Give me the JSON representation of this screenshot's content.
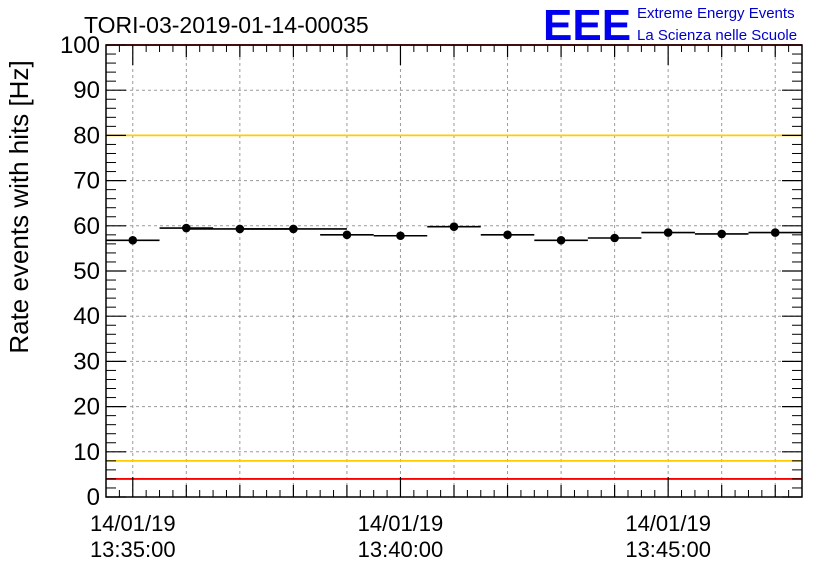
{
  "chart_data": {
    "type": "scatter",
    "title": "TORI-03-2019-01-14-00035",
    "xlabel": "",
    "ylabel": "Rate events with hits [Hz]",
    "ylim": [
      0,
      100
    ],
    "yticks": [
      "0",
      "10",
      "20",
      "30",
      "40",
      "50",
      "60",
      "70",
      "80",
      "90",
      "100"
    ],
    "xlim_minutes": [
      -0.5,
      12.5
    ],
    "x_unit": "minutes after 13:35:00",
    "xticks": [
      {
        "at": 0,
        "date": "14/01/19",
        "time": "13:35:00"
      },
      {
        "at": 5,
        "date": "14/01/19",
        "time": "13:40:00"
      },
      {
        "at": 10,
        "date": "14/01/19",
        "time": "13:45:00"
      }
    ],
    "grid": true,
    "series": [
      {
        "name": "rate",
        "x": [
          0,
          1,
          2,
          3,
          4,
          5,
          6,
          7,
          8,
          9,
          10,
          11,
          12
        ],
        "x_half": [
          0.5,
          0.5,
          1.0,
          1.0,
          0.5,
          0.5,
          0.5,
          0.5,
          0.5,
          0.5,
          0.5,
          0.5,
          0.5
        ],
        "values": [
          56.8,
          59.5,
          59.3,
          59.3,
          58.0,
          57.8,
          59.8,
          58.0,
          56.8,
          57.3,
          58.5,
          58.2,
          58.5
        ]
      }
    ],
    "reference_lines": [
      {
        "name": "upper-red-limit",
        "value": 100,
        "color": "#ff0000"
      },
      {
        "name": "upper-yellow-limit",
        "value": 80,
        "color": "#ffcc00"
      },
      {
        "name": "lower-yellow-limit",
        "value": 8,
        "color": "#ffcc00"
      },
      {
        "name": "lower-red-limit",
        "value": 4,
        "color": "#ff0000"
      }
    ]
  },
  "logo": {
    "mark": "EEE",
    "line1": "Extreme Energy Events",
    "line2": "La Scienza nelle Scuole",
    "color": "#0000ee"
  }
}
